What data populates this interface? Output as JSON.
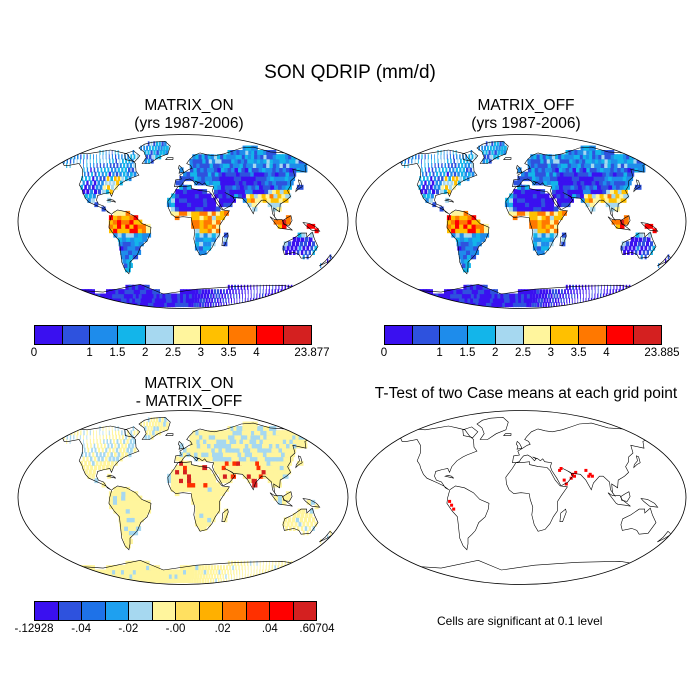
{
  "figure": {
    "title": "SON QDRIP (mm/d)"
  },
  "panels": [
    {
      "title_line1": "MATRIX_ON",
      "title_line2": "(yrs 1987-2006)",
      "colorbar_labels": [
        "0",
        "1",
        "1.5",
        "2",
        "2.5",
        "3",
        "3.5",
        "4",
        "23.877"
      ],
      "colorbar_colors": [
        "#3a10f0",
        "#2e52de",
        "#1e8ceb",
        "#13b5ea",
        "#a6d8f0",
        "#fff59d",
        "#ffc000",
        "#ff7800",
        "#ff0000",
        "#d42020"
      ]
    },
    {
      "title_line1": "MATRIX_OFF",
      "title_line2": "(yrs 1987-2006)",
      "colorbar_labels": [
        "0",
        "1",
        "1.5",
        "2",
        "2.5",
        "3",
        "3.5",
        "4",
        "23.885"
      ],
      "colorbar_colors": [
        "#3a10f0",
        "#2e52de",
        "#1e8ceb",
        "#13b5ea",
        "#a6d8f0",
        "#fff59d",
        "#ffc000",
        "#ff7800",
        "#ff0000",
        "#d42020"
      ]
    },
    {
      "title_line1": "MATRIX_ON",
      "title_line2": "- MATRIX_OFF",
      "colorbar_labels": [
        "-.12928",
        "-.04",
        "-.02",
        "-.00",
        ".02",
        ".04",
        ".60704"
      ],
      "colorbar_colors": [
        "#3a10f0",
        "#2e52de",
        "#1e72e8",
        "#1ea0f0",
        "#a6d8f0",
        "#fff59d",
        "#ffe060",
        "#ffb000",
        "#ff7800",
        "#ff3000",
        "#ff0000",
        "#d42020"
      ]
    },
    {
      "title_line1": "T-Test of two Case means at each grid point",
      "note": "Cells are significant at 0.1 level",
      "significant_color": "#ff0000"
    }
  ]
}
